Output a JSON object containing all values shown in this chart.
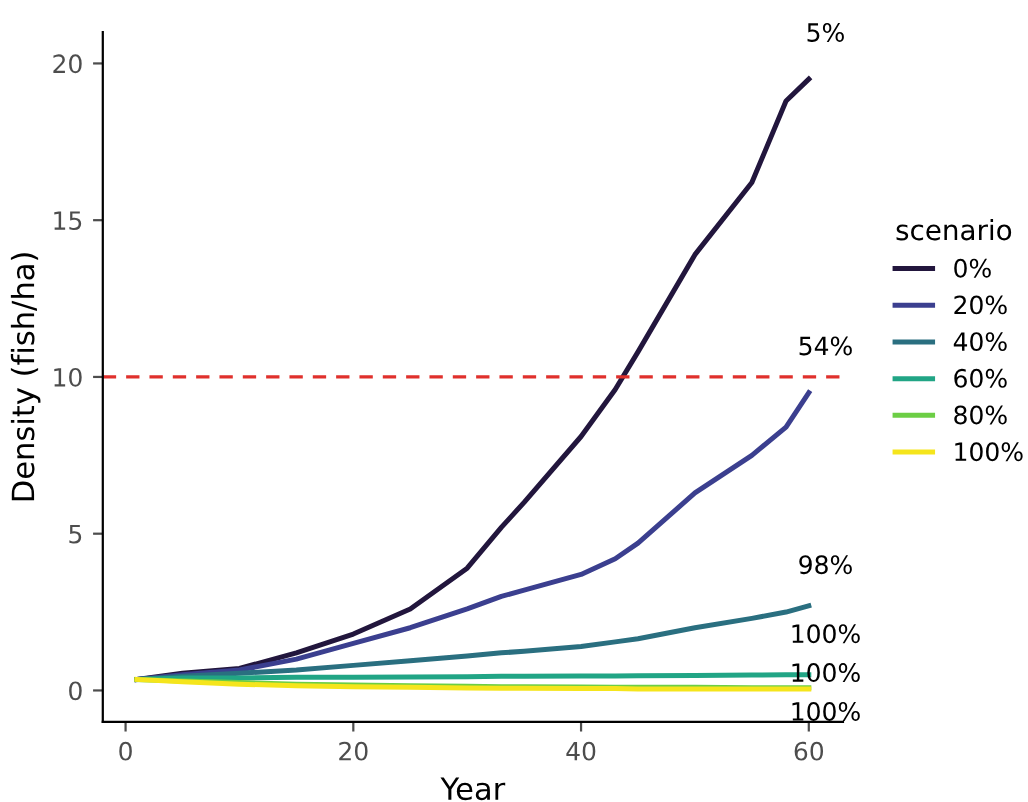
{
  "chart_data": {
    "type": "line",
    "xlabel": "Year",
    "ylabel": "Density (fish/ha)",
    "legend_title": "scenario",
    "legend": "right",
    "grid": false,
    "line_style": "solid",
    "marker": "none",
    "xlim": [
      -2,
      63
    ],
    "ylim": [
      -1,
      21
    ],
    "xticks": [
      0,
      20,
      40,
      60
    ],
    "yticks": [
      0,
      5,
      10,
      15,
      20
    ],
    "x": [
      1,
      5,
      10,
      15,
      20,
      25,
      30,
      33,
      35,
      40,
      43,
      45,
      50,
      55,
      58,
      60
    ],
    "series": [
      {
        "name": "0%",
        "color": "#22163d",
        "values": [
          0.35,
          0.55,
          0.7,
          1.2,
          1.8,
          2.6,
          3.9,
          5.2,
          6.0,
          8.1,
          9.6,
          10.8,
          13.9,
          16.2,
          18.8,
          19.5
        ]
      },
      {
        "name": "20%",
        "color": "#3b3f8f",
        "values": [
          0.35,
          0.5,
          0.65,
          1.0,
          1.5,
          2.0,
          2.6,
          3.0,
          3.2,
          3.7,
          4.2,
          4.7,
          6.3,
          7.5,
          8.4,
          9.5
        ]
      },
      {
        "name": "40%",
        "color": "#2a6f80",
        "values": [
          0.35,
          0.45,
          0.55,
          0.65,
          0.8,
          0.95,
          1.1,
          1.2,
          1.25,
          1.4,
          1.55,
          1.65,
          2.0,
          2.3,
          2.5,
          2.7
        ]
      },
      {
        "name": "60%",
        "color": "#21a585",
        "values": [
          0.35,
          0.4,
          0.4,
          0.42,
          0.42,
          0.43,
          0.44,
          0.45,
          0.45,
          0.46,
          0.46,
          0.47,
          0.48,
          0.49,
          0.5,
          0.5
        ]
      },
      {
        "name": "80%",
        "color": "#6cce45",
        "values": [
          0.35,
          0.3,
          0.25,
          0.2,
          0.17,
          0.15,
          0.13,
          0.12,
          0.12,
          0.11,
          0.1,
          0.1,
          0.1,
          0.09,
          0.09,
          0.09
        ]
      },
      {
        "name": "100%",
        "color": "#f5e51c",
        "values": [
          0.35,
          0.28,
          0.2,
          0.15,
          0.12,
          0.1,
          0.08,
          0.07,
          0.07,
          0.06,
          0.06,
          0.05,
          0.05,
          0.05,
          0.05,
          0.05
        ]
      }
    ],
    "ref_lines": [
      {
        "axis": "y",
        "value": 10,
        "color": "#e0302c",
        "line_style": "dashed"
      }
    ],
    "annotations": [
      "5%",
      "54%",
      "98%",
      "100%",
      "100%",
      "100%"
    ]
  }
}
